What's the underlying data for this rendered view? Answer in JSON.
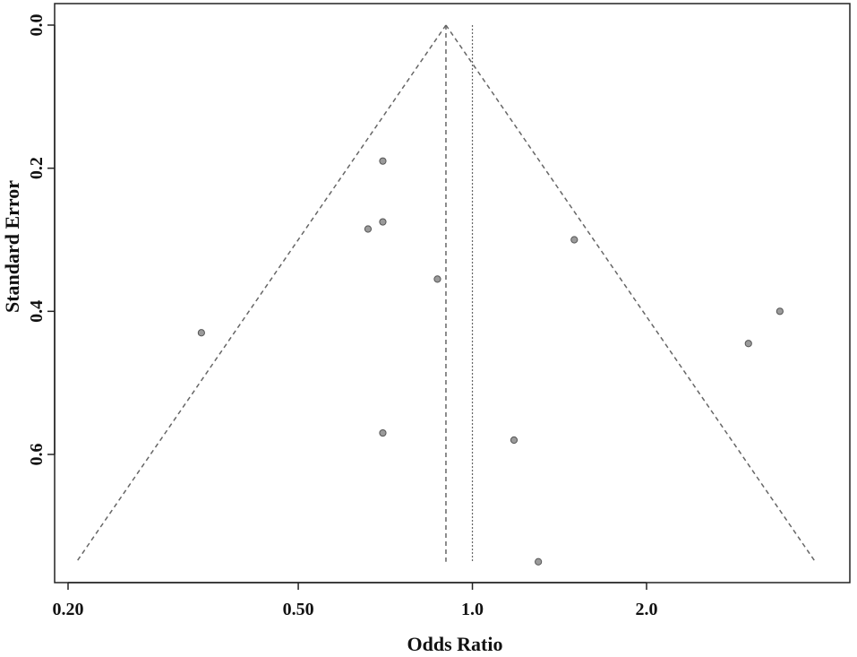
{
  "chart_data": {
    "type": "scatter",
    "subtype": "funnel-plot",
    "xlabel": "Odds Ratio",
    "ylabel": "Standard Error",
    "x_scale": "log",
    "x_ticks": [
      {
        "value": 0.2,
        "label": "0.20"
      },
      {
        "value": 0.5,
        "label": "0.50"
      },
      {
        "value": 1.0,
        "label": "1.0"
      },
      {
        "value": 2.0,
        "label": "2.0"
      }
    ],
    "y_ticks": [
      {
        "value": 0.0,
        "label": "0.0"
      },
      {
        "value": 0.2,
        "label": "0.2"
      },
      {
        "value": 0.4,
        "label": "0.4"
      },
      {
        "value": 0.6,
        "label": "0.6"
      }
    ],
    "xlim": [
      0.195,
      5.2
    ],
    "ylim": [
      0.78,
      0.0
    ],
    "y_reversed": true,
    "pooled_or": 0.9,
    "null_or": 1.0,
    "funnel_se_max": 0.75,
    "points": [
      {
        "or": 0.7,
        "se": 0.19
      },
      {
        "or": 0.7,
        "se": 0.275
      },
      {
        "or": 0.66,
        "se": 0.285
      },
      {
        "or": 1.5,
        "se": 0.3
      },
      {
        "or": 0.87,
        "se": 0.355
      },
      {
        "or": 0.34,
        "se": 0.43
      },
      {
        "or": 3.4,
        "se": 0.4
      },
      {
        "or": 3.0,
        "se": 0.445
      },
      {
        "or": 0.7,
        "se": 0.57
      },
      {
        "or": 1.18,
        "se": 0.58
      },
      {
        "or": 1.3,
        "se": 0.75
      }
    ],
    "grid": false,
    "colors": {
      "points_fill": "#9a9a9a",
      "points_stroke": "#555555",
      "lines": "#666666",
      "frame": "#222222"
    }
  }
}
